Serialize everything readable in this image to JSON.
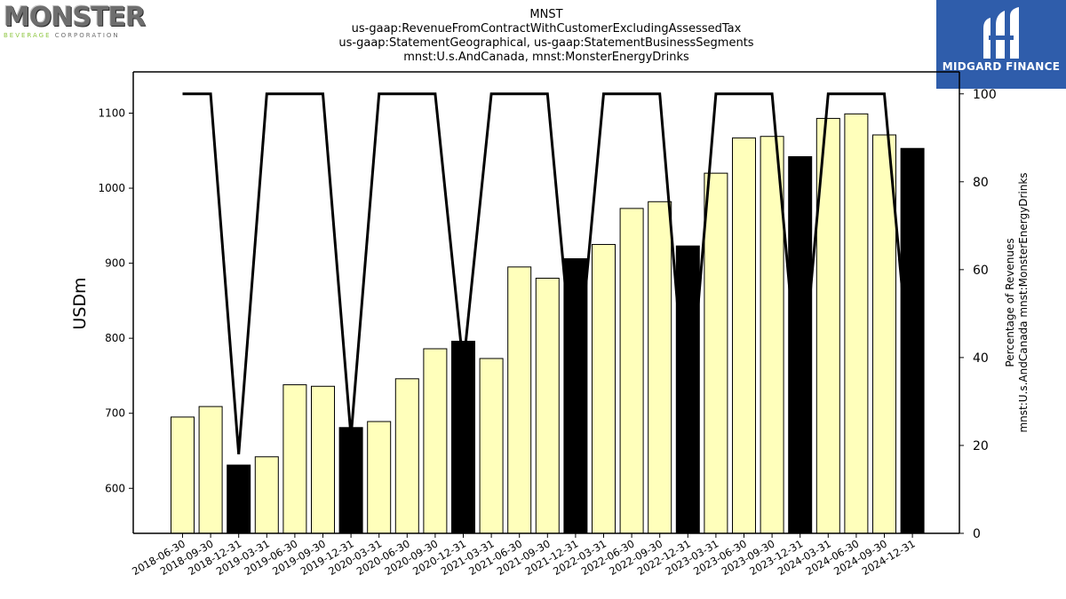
{
  "logos": {
    "left_main": "MONSTER",
    "left_sub_green": "BEVERAGE",
    "left_sub_dark": "CORPORATION",
    "right_brand": "MIDGARD FINANCE"
  },
  "colors": {
    "bar_light": "#ffffbb",
    "bar_dark": "#000000",
    "line": "#000000",
    "logo_blue": "#2f5dab"
  },
  "chart_data": {
    "type": "bar",
    "title_lines": [
      "MNST",
      "us-gaap:RevenueFromContractWithCustomerExcludingAssessedTax",
      "us-gaap:StatementGeographical, us-gaap:StatementBusinessSegments",
      "mnst:U.s.AndCanada, mnst:MonsterEnergyDrinks"
    ],
    "ylabel": "USDm",
    "y2label_lines": [
      "Percentage of Revenues",
      "mnst:U.s.AndCanada mnst:MonsterEnergyDrinks"
    ],
    "ylim": [
      540,
      1155
    ],
    "y2lim": [
      0,
      105
    ],
    "yticks": [
      600,
      700,
      800,
      900,
      1000,
      1100
    ],
    "y2ticks": [
      0,
      20,
      40,
      60,
      80,
      100
    ],
    "grid": false,
    "categories": [
      "2018-06-30",
      "2018-09-30",
      "2018-12-31",
      "2019-03-31",
      "2019-06-30",
      "2019-09-30",
      "2019-12-31",
      "2020-03-31",
      "2020-06-30",
      "2020-09-30",
      "2020-12-31",
      "2021-03-31",
      "2021-06-30",
      "2021-09-30",
      "2021-12-31",
      "2022-03-31",
      "2022-06-30",
      "2022-09-30",
      "2022-12-31",
      "2023-03-31",
      "2023-06-30",
      "2023-09-30",
      "2023-12-31",
      "2024-03-31",
      "2024-06-30",
      "2024-09-30",
      "2024-12-31"
    ],
    "series": [
      {
        "type": "bar",
        "values": [
          695,
          709,
          631,
          642,
          738,
          736,
          681,
          689,
          746,
          786,
          796,
          773,
          895,
          880,
          906,
          925,
          973,
          982,
          923,
          1020,
          1067,
          1069,
          1042,
          1093,
          1099,
          1071,
          1053
        ],
        "dark": [
          false,
          false,
          true,
          false,
          false,
          false,
          true,
          false,
          false,
          false,
          true,
          false,
          false,
          false,
          true,
          false,
          false,
          false,
          true,
          false,
          false,
          false,
          true,
          false,
          false,
          false,
          true
        ]
      },
      {
        "type": "line",
        "axis": "secondary",
        "values": [
          100,
          100,
          18,
          100,
          100,
          100,
          22,
          100,
          100,
          100,
          38,
          100,
          100,
          100,
          31,
          100,
          100,
          100,
          24,
          100,
          100,
          100,
          29,
          100,
          100,
          100,
          30
        ]
      }
    ]
  }
}
